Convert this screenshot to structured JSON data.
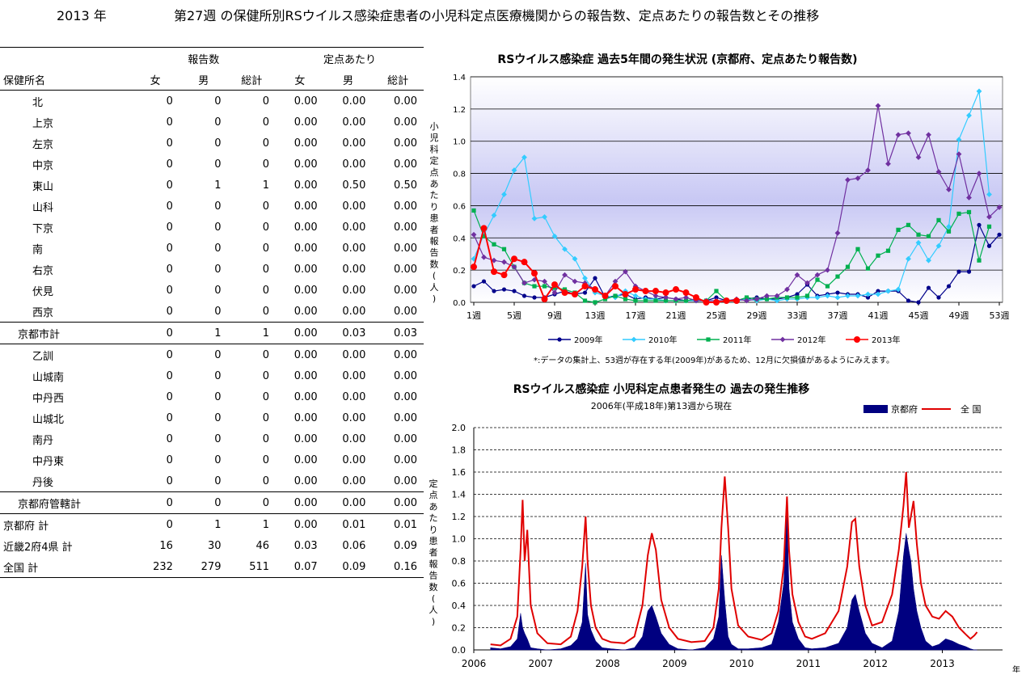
{
  "header": {
    "year_text": "2013 年",
    "title": "第27週 の保健所別RSウイルス感染症患者の小児科定点医療機関からの報告数、定点あたりの報告数とその推移"
  },
  "table": {
    "group_headers": {
      "reports": "報告数",
      "per_site": "定点あたり"
    },
    "columns": [
      "保健所名",
      "女",
      "男",
      "総計",
      "女",
      "男",
      "総計"
    ],
    "rows": [
      {
        "name": "北",
        "f": "0",
        "m": "0",
        "t": "0",
        "pf": "0.00",
        "pm": "0.00",
        "pt": "0.00"
      },
      {
        "name": "上京",
        "f": "0",
        "m": "0",
        "t": "0",
        "pf": "0.00",
        "pm": "0.00",
        "pt": "0.00"
      },
      {
        "name": "左京",
        "f": "0",
        "m": "0",
        "t": "0",
        "pf": "0.00",
        "pm": "0.00",
        "pt": "0.00"
      },
      {
        "name": "中京",
        "f": "0",
        "m": "0",
        "t": "0",
        "pf": "0.00",
        "pm": "0.00",
        "pt": "0.00"
      },
      {
        "name": "東山",
        "f": "0",
        "m": "1",
        "t": "1",
        "pf": "0.00",
        "pm": "0.50",
        "pt": "0.50"
      },
      {
        "name": "山科",
        "f": "0",
        "m": "0",
        "t": "0",
        "pf": "0.00",
        "pm": "0.00",
        "pt": "0.00"
      },
      {
        "name": "下京",
        "f": "0",
        "m": "0",
        "t": "0",
        "pf": "0.00",
        "pm": "0.00",
        "pt": "0.00"
      },
      {
        "name": "南",
        "f": "0",
        "m": "0",
        "t": "0",
        "pf": "0.00",
        "pm": "0.00",
        "pt": "0.00"
      },
      {
        "name": "右京",
        "f": "0",
        "m": "0",
        "t": "0",
        "pf": "0.00",
        "pm": "0.00",
        "pt": "0.00"
      },
      {
        "name": "伏見",
        "f": "0",
        "m": "0",
        "t": "0",
        "pf": "0.00",
        "pm": "0.00",
        "pt": "0.00"
      },
      {
        "name": "西京",
        "f": "0",
        "m": "0",
        "t": "0",
        "pf": "0.00",
        "pm": "0.00",
        "pt": "0.00"
      },
      {
        "name": "京都市計",
        "f": "0",
        "m": "1",
        "t": "1",
        "pf": "0.00",
        "pm": "0.03",
        "pt": "0.03"
      },
      {
        "name": "乙訓",
        "f": "0",
        "m": "0",
        "t": "0",
        "pf": "0.00",
        "pm": "0.00",
        "pt": "0.00"
      },
      {
        "name": "山城南",
        "f": "0",
        "m": "0",
        "t": "0",
        "pf": "0.00",
        "pm": "0.00",
        "pt": "0.00"
      },
      {
        "name": "中丹西",
        "f": "0",
        "m": "0",
        "t": "0",
        "pf": "0.00",
        "pm": "0.00",
        "pt": "0.00"
      },
      {
        "name": "山城北",
        "f": "0",
        "m": "0",
        "t": "0",
        "pf": "0.00",
        "pm": "0.00",
        "pt": "0.00"
      },
      {
        "name": "南丹",
        "f": "0",
        "m": "0",
        "t": "0",
        "pf": "0.00",
        "pm": "0.00",
        "pt": "0.00"
      },
      {
        "name": "中丹東",
        "f": "0",
        "m": "0",
        "t": "0",
        "pf": "0.00",
        "pm": "0.00",
        "pt": "0.00"
      },
      {
        "name": "丹後",
        "f": "0",
        "m": "0",
        "t": "0",
        "pf": "0.00",
        "pm": "0.00",
        "pt": "0.00"
      },
      {
        "name": "京都府管轄計",
        "f": "0",
        "m": "0",
        "t": "0",
        "pf": "0.00",
        "pm": "0.00",
        "pt": "0.00"
      },
      {
        "name": "京都府  計",
        "f": "0",
        "m": "1",
        "t": "1",
        "pf": "0.00",
        "pm": "0.01",
        "pt": "0.01"
      },
      {
        "name": "近畿2府4県  計",
        "f": "16",
        "m": "30",
        "t": "46",
        "pf": "0.03",
        "pm": "0.06",
        "pt": "0.09"
      },
      {
        "name": "全国  計",
        "f": "232",
        "m": "279",
        "t": "511",
        "pf": "0.07",
        "pm": "0.09",
        "pt": "0.16"
      }
    ]
  },
  "chart_data": [
    {
      "type": "line",
      "title": "RSウイルス感染症  過去5年間の発生状況 (京都府、定点あたり報告数)",
      "xlabel": "",
      "ylabel": "小児科定点あたり患者報告数(人)",
      "ylim": [
        0,
        1.4
      ],
      "y_ticks": [
        "0.0",
        "0.2",
        "0.4",
        "0.6",
        "0.8",
        "1.0",
        "1.2",
        "1.4"
      ],
      "x_tick_labels": [
        "1週",
        "5週",
        "9週",
        "13週",
        "17週",
        "21週",
        "25週",
        "29週",
        "33週",
        "37週",
        "41週",
        "45週",
        "49週",
        "53週"
      ],
      "x_tick_weeks": [
        1,
        5,
        9,
        13,
        17,
        21,
        25,
        29,
        33,
        37,
        41,
        45,
        49,
        53
      ],
      "note": "*:データの集計上、53週が存在する年(2009年)があるため、12月に欠損値があるようにみえます。",
      "colors": {
        "2009年": "#00008B",
        "2010年": "#33CCFF",
        "2011年": "#00B050",
        "2012年": "#7030A0",
        "2013年": "#FF0000"
      },
      "x": [
        1,
        2,
        3,
        4,
        5,
        6,
        7,
        8,
        9,
        10,
        11,
        12,
        13,
        14,
        15,
        16,
        17,
        18,
        19,
        20,
        21,
        22,
        23,
        24,
        25,
        26,
        27,
        28,
        29,
        30,
        31,
        32,
        33,
        34,
        35,
        36,
        37,
        38,
        39,
        40,
        41,
        42,
        43,
        44,
        45,
        46,
        47,
        48,
        49,
        50,
        51,
        52,
        53
      ],
      "series": [
        {
          "name": "2009年",
          "values": [
            0.1,
            0.13,
            0.07,
            0.08,
            0.07,
            0.04,
            0.03,
            0.03,
            0.05,
            0.07,
            0.05,
            0.06,
            0.15,
            0.03,
            0.04,
            0.05,
            0.02,
            0.03,
            0.02,
            0.03,
            0.02,
            0.01,
            0.01,
            0.01,
            0.03,
            0.01,
            0.01,
            0.02,
            0.03,
            0.02,
            0.02,
            0.03,
            0.05,
            0.11,
            0.04,
            0.05,
            0.06,
            0.05,
            0.05,
            0.03,
            0.07,
            0.07,
            0.07,
            0.01,
            0.0,
            0.09,
            0.03,
            0.1,
            0.19,
            0.19,
            0.48,
            0.35,
            0.42
          ]
        },
        {
          "name": "2010年",
          "values": [
            0.27,
            0.42,
            0.54,
            0.67,
            0.82,
            0.9,
            0.52,
            0.53,
            0.41,
            0.33,
            0.27,
            0.15,
            0.06,
            0.04,
            0.03,
            0.07,
            0.04,
            0.02,
            0.02,
            0.01,
            0.01,
            0.01,
            0.01,
            0.01,
            0.01,
            0.01,
            0.01,
            0.02,
            0.01,
            0.02,
            0.01,
            0.02,
            0.02,
            0.03,
            0.03,
            0.04,
            0.03,
            0.04,
            0.04,
            0.05,
            0.05,
            0.07,
            0.08,
            0.27,
            0.37,
            0.26,
            0.35,
            0.47,
            1.01,
            1.16,
            1.31,
            0.67,
            null
          ]
        },
        {
          "name": "2011年",
          "values": [
            0.57,
            0.41,
            0.36,
            0.33,
            0.22,
            0.12,
            0.1,
            0.1,
            0.09,
            0.08,
            0.06,
            0.01,
            0.0,
            0.02,
            0.04,
            0.02,
            0.01,
            0.01,
            0.01,
            0.01,
            0.01,
            0.01,
            0.02,
            0.01,
            0.07,
            0.01,
            0.01,
            0.03,
            0.02,
            0.02,
            0.03,
            0.03,
            0.03,
            0.04,
            0.14,
            0.1,
            0.16,
            0.22,
            0.33,
            0.21,
            0.29,
            0.32,
            0.45,
            0.48,
            0.42,
            0.41,
            0.51,
            0.44,
            0.55,
            0.56,
            0.26,
            0.47,
            null
          ]
        },
        {
          "name": "2012年",
          "values": [
            0.42,
            0.28,
            0.26,
            0.25,
            0.22,
            0.12,
            0.14,
            0.13,
            0.06,
            0.17,
            0.13,
            0.12,
            0.08,
            0.04,
            0.13,
            0.19,
            0.1,
            0.07,
            0.04,
            0.03,
            0.02,
            0.03,
            0.01,
            0.01,
            0.01,
            0.01,
            0.02,
            0.01,
            0.02,
            0.04,
            0.04,
            0.08,
            0.17,
            0.12,
            0.17,
            0.2,
            0.43,
            0.76,
            0.77,
            0.82,
            1.22,
            0.86,
            1.04,
            1.05,
            0.9,
            1.04,
            0.81,
            0.7,
            0.92,
            0.65,
            0.8,
            0.53,
            0.59
          ]
        },
        {
          "name": "2013年",
          "values": [
            0.22,
            0.46,
            0.19,
            0.17,
            0.27,
            0.25,
            0.18,
            0.02,
            0.11,
            0.06,
            0.05,
            0.1,
            0.08,
            0.04,
            0.1,
            0.05,
            0.08,
            0.07,
            0.07,
            0.06,
            0.08,
            0.06,
            0.03,
            0.0,
            0.0,
            0.01,
            0.01,
            null,
            null,
            null,
            null,
            null,
            null,
            null,
            null,
            null,
            null,
            null,
            null,
            null,
            null,
            null,
            null,
            null,
            null,
            null,
            null,
            null,
            null,
            null,
            null,
            null,
            null
          ]
        }
      ]
    },
    {
      "type": "area",
      "title": "RSウイルス感染症  小児科定点患者発生の  過去の発生推移",
      "subtitle": "2006年(平成18年)第13週から現在",
      "xlabel": "年",
      "ylabel": "定点あたり患者報告数(人)",
      "ylim": [
        0,
        2.0
      ],
      "y_ticks": [
        "0.0",
        "0.2",
        "0.4",
        "0.6",
        "0.8",
        "1.0",
        "1.2",
        "1.4",
        "1.6",
        "1.8",
        "2.0"
      ],
      "x_tick_labels": [
        "2006",
        "2007",
        "2008",
        "2009",
        "2010",
        "2011",
        "2012",
        "2013"
      ],
      "colors": {
        "京都府": "#000080",
        "全 国": "#E00000"
      },
      "x": [
        2006.25,
        2006.4,
        2006.55,
        2006.65,
        2006.7,
        2006.73,
        2006.76,
        2006.8,
        2006.85,
        2006.95,
        2007.1,
        2007.3,
        2007.45,
        2007.55,
        2007.62,
        2007.67,
        2007.7,
        2007.75,
        2007.82,
        2007.92,
        2008.05,
        2008.25,
        2008.4,
        2008.52,
        2008.6,
        2008.66,
        2008.72,
        2008.8,
        2008.92,
        2009.05,
        2009.25,
        2009.45,
        2009.58,
        2009.66,
        2009.7,
        2009.75,
        2009.8,
        2009.85,
        2009.95,
        2010.1,
        2010.3,
        2010.45,
        2010.55,
        2010.63,
        2010.68,
        2010.71,
        2010.76,
        2010.85,
        2010.95,
        2011.05,
        2011.25,
        2011.45,
        2011.58,
        2011.65,
        2011.7,
        2011.76,
        2011.85,
        2011.95,
        2012.1,
        2012.25,
        2012.35,
        2012.42,
        2012.46,
        2012.5,
        2012.53,
        2012.57,
        2012.62,
        2012.68,
        2012.75,
        2012.85,
        2012.95,
        2013.05,
        2013.15,
        2013.25,
        2013.35,
        2013.42,
        2013.48,
        2013.52
      ],
      "series": [
        {
          "name": "京都府",
          "values": [
            0.02,
            0.01,
            0.03,
            0.1,
            0.33,
            0.2,
            0.15,
            0.1,
            0.02,
            0.01,
            0.0,
            0.01,
            0.04,
            0.1,
            0.25,
            0.78,
            0.32,
            0.18,
            0.08,
            0.02,
            0.01,
            0.0,
            0.02,
            0.12,
            0.35,
            0.4,
            0.3,
            0.15,
            0.05,
            0.01,
            0.0,
            0.02,
            0.1,
            0.3,
            0.85,
            0.45,
            0.12,
            0.05,
            0.01,
            0.01,
            0.02,
            0.05,
            0.25,
            0.6,
            1.25,
            0.55,
            0.25,
            0.1,
            0.02,
            0.01,
            0.02,
            0.06,
            0.2,
            0.45,
            0.5,
            0.35,
            0.15,
            0.06,
            0.02,
            0.08,
            0.35,
            0.85,
            1.05,
            0.9,
            0.8,
            0.55,
            0.35,
            0.2,
            0.08,
            0.03,
            0.05,
            0.1,
            0.08,
            0.05,
            0.03,
            0.01,
            0.0,
            0.0
          ]
        },
        {
          "name": "全 国",
          "values": [
            0.05,
            0.04,
            0.1,
            0.3,
            0.9,
            1.35,
            0.8,
            1.08,
            0.4,
            0.15,
            0.06,
            0.05,
            0.12,
            0.35,
            0.75,
            1.2,
            0.8,
            0.4,
            0.2,
            0.1,
            0.07,
            0.06,
            0.12,
            0.4,
            0.85,
            1.05,
            0.9,
            0.45,
            0.2,
            0.1,
            0.07,
            0.08,
            0.2,
            0.55,
            1.1,
            1.56,
            1.1,
            0.55,
            0.22,
            0.12,
            0.09,
            0.15,
            0.35,
            0.75,
            1.38,
            0.9,
            0.5,
            0.25,
            0.12,
            0.1,
            0.15,
            0.35,
            0.75,
            1.15,
            1.18,
            0.75,
            0.4,
            0.22,
            0.25,
            0.5,
            0.9,
            1.3,
            1.6,
            1.1,
            1.2,
            1.34,
            0.95,
            0.6,
            0.4,
            0.3,
            0.28,
            0.35,
            0.3,
            0.2,
            0.14,
            0.1,
            0.13,
            0.16
          ]
        }
      ]
    }
  ]
}
